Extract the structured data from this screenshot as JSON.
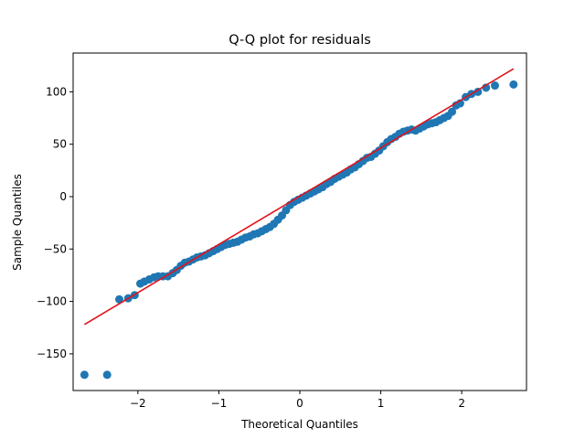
{
  "chart_data": {
    "type": "scatter",
    "title": "Q-Q plot for residuals",
    "xlabel": "Theoretical Quantiles",
    "ylabel": "Sample Quantiles",
    "xlim": [
      -2.8,
      2.8
    ],
    "ylim": [
      -185,
      137
    ],
    "xticks": [
      -2,
      -1,
      0,
      1,
      2
    ],
    "xtick_labels": [
      "−2",
      "−1",
      "0",
      "1",
      "2"
    ],
    "yticks": [
      -150,
      -100,
      -50,
      0,
      50,
      100
    ],
    "ytick_labels": [
      "−150",
      "−100",
      "−50",
      "0",
      "50",
      "100"
    ],
    "grid": false,
    "series": [
      {
        "kind": "points",
        "color": "#1f77b4",
        "points": [
          [
            -2.66,
            -170
          ],
          [
            -2.38,
            -170
          ],
          [
            -2.23,
            -98
          ],
          [
            -2.12,
            -97
          ],
          [
            -2.04,
            -94
          ],
          [
            -1.97,
            -83
          ],
          [
            -1.92,
            -81
          ],
          [
            -1.86,
            -79
          ],
          [
            -1.8,
            -77
          ],
          [
            -1.75,
            -76
          ],
          [
            -1.69,
            -76
          ],
          [
            -1.63,
            -76
          ],
          [
            -1.57,
            -73
          ],
          [
            -1.52,
            -70
          ],
          [
            -1.47,
            -66
          ],
          [
            -1.42,
            -63
          ],
          [
            -1.37,
            -62
          ],
          [
            -1.32,
            -60
          ],
          [
            -1.27,
            -58
          ],
          [
            -1.22,
            -57
          ],
          [
            -1.17,
            -56
          ],
          [
            -1.12,
            -54
          ],
          [
            -1.07,
            -52
          ],
          [
            -1.02,
            -50
          ],
          [
            -0.97,
            -48
          ],
          [
            -0.92,
            -46
          ],
          [
            -0.87,
            -45
          ],
          [
            -0.82,
            -44
          ],
          [
            -0.77,
            -43
          ],
          [
            -0.72,
            -41
          ],
          [
            -0.67,
            -39
          ],
          [
            -0.62,
            -38
          ],
          [
            -0.57,
            -36
          ],
          [
            -0.52,
            -35
          ],
          [
            -0.47,
            -33
          ],
          [
            -0.42,
            -31
          ],
          [
            -0.37,
            -29
          ],
          [
            -0.32,
            -26
          ],
          [
            -0.27,
            -22
          ],
          [
            -0.22,
            -18
          ],
          [
            -0.17,
            -13
          ],
          [
            -0.12,
            -8
          ],
          [
            -0.07,
            -5
          ],
          [
            -0.02,
            -3
          ],
          [
            0.03,
            -1
          ],
          [
            0.08,
            1
          ],
          [
            0.13,
            3
          ],
          [
            0.18,
            5
          ],
          [
            0.23,
            7
          ],
          [
            0.28,
            9
          ],
          [
            0.33,
            12
          ],
          [
            0.38,
            14
          ],
          [
            0.43,
            17
          ],
          [
            0.48,
            19
          ],
          [
            0.53,
            21
          ],
          [
            0.58,
            23
          ],
          [
            0.63,
            26
          ],
          [
            0.68,
            28
          ],
          [
            0.73,
            31
          ],
          [
            0.78,
            34
          ],
          [
            0.83,
            37
          ],
          [
            0.88,
            38
          ],
          [
            0.93,
            41
          ],
          [
            0.98,
            44
          ],
          [
            1.03,
            48
          ],
          [
            1.08,
            52
          ],
          [
            1.13,
            55
          ],
          [
            1.18,
            57
          ],
          [
            1.23,
            60
          ],
          [
            1.28,
            62
          ],
          [
            1.33,
            63
          ],
          [
            1.38,
            64
          ],
          [
            1.43,
            63
          ],
          [
            1.48,
            65
          ],
          [
            1.53,
            67
          ],
          [
            1.58,
            69
          ],
          [
            1.63,
            70
          ],
          [
            1.68,
            71
          ],
          [
            1.73,
            73
          ],
          [
            1.78,
            75
          ],
          [
            1.83,
            77
          ],
          [
            1.88,
            81
          ],
          [
            1.93,
            87
          ],
          [
            1.98,
            89
          ],
          [
            2.05,
            95
          ],
          [
            2.12,
            98
          ],
          [
            2.2,
            100
          ],
          [
            2.3,
            104
          ],
          [
            2.41,
            106
          ],
          [
            2.64,
            107
          ]
        ]
      },
      {
        "kind": "line",
        "color": "#e3131b",
        "points": [
          [
            -2.66,
            -122
          ],
          [
            2.64,
            122
          ]
        ]
      }
    ]
  }
}
